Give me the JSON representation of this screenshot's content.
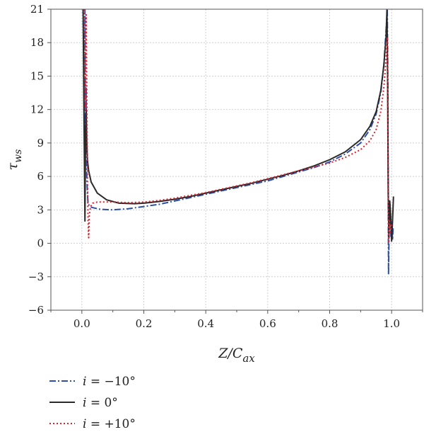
{
  "chart_data": {
    "type": "line",
    "xlabel": "Z/C_ax",
    "ylabel": "τ_ws",
    "xlim": [
      -0.1,
      1.1
    ],
    "ylim": [
      -6,
      21
    ],
    "xticks": [
      0.0,
      0.2,
      0.4,
      0.6,
      0.8,
      1.0
    ],
    "xtick_labels": [
      "0.0",
      "0.2",
      "0.4",
      "0.6",
      "0.8",
      "1.0"
    ],
    "yticks": [
      -6,
      -3,
      0,
      3,
      6,
      9,
      12,
      15,
      18,
      21
    ],
    "ytick_labels": [
      "−6",
      "−3",
      "0",
      "3",
      "6",
      "9",
      "12",
      "15",
      "18",
      "21"
    ],
    "grid": true,
    "legend_position": "bottom-left",
    "series": [
      {
        "name": "i = −10°",
        "color": "#2b4fa8",
        "style": "dashdot",
        "points": [
          [
            0.004,
            21
          ],
          [
            0.006,
            16
          ],
          [
            0.008,
            10
          ],
          [
            0.01,
            21
          ],
          [
            0.012,
            8
          ],
          [
            0.014,
            14
          ],
          [
            0.016,
            6
          ],
          [
            0.018,
            4.5
          ],
          [
            0.02,
            3.6
          ],
          [
            0.025,
            3.3
          ],
          [
            0.035,
            3.2
          ],
          [
            0.06,
            3.05
          ],
          [
            0.1,
            3.0
          ],
          [
            0.15,
            3.1
          ],
          [
            0.2,
            3.3
          ],
          [
            0.25,
            3.5
          ],
          [
            0.3,
            3.8
          ],
          [
            0.35,
            4.1
          ],
          [
            0.4,
            4.4
          ],
          [
            0.45,
            4.7
          ],
          [
            0.5,
            5.0
          ],
          [
            0.55,
            5.3
          ],
          [
            0.6,
            5.6
          ],
          [
            0.65,
            6.0
          ],
          [
            0.7,
            6.4
          ],
          [
            0.75,
            6.8
          ],
          [
            0.8,
            7.3
          ],
          [
            0.85,
            8.0
          ],
          [
            0.9,
            9.0
          ],
          [
            0.93,
            10.2
          ],
          [
            0.95,
            11.6
          ],
          [
            0.965,
            13.5
          ],
          [
            0.975,
            16.0
          ],
          [
            0.983,
            19.5
          ],
          [
            0.986,
            21
          ],
          [
            0.988,
            14
          ],
          [
            0.989,
            5
          ],
          [
            0.99,
            -2.8
          ],
          [
            0.992,
            1.5
          ],
          [
            0.995,
            3.5
          ],
          [
            0.998,
            0.5
          ],
          [
            1.0,
            2.0
          ],
          [
            1.003,
            0.3
          ],
          [
            1.005,
            1.5
          ]
        ]
      },
      {
        "name": "i = 0°",
        "color": "#2a2a2a",
        "style": "solid",
        "points": [
          [
            0.004,
            21
          ],
          [
            0.006,
            14
          ],
          [
            0.008,
            8
          ],
          [
            0.01,
            2.0
          ],
          [
            0.012,
            10
          ],
          [
            0.014,
            12
          ],
          [
            0.016,
            9
          ],
          [
            0.018,
            7.5
          ],
          [
            0.022,
            6.5
          ],
          [
            0.03,
            5.5
          ],
          [
            0.05,
            4.5
          ],
          [
            0.08,
            3.9
          ],
          [
            0.12,
            3.6
          ],
          [
            0.17,
            3.55
          ],
          [
            0.2,
            3.6
          ],
          [
            0.25,
            3.75
          ],
          [
            0.3,
            3.95
          ],
          [
            0.35,
            4.2
          ],
          [
            0.4,
            4.5
          ],
          [
            0.45,
            4.8
          ],
          [
            0.5,
            5.1
          ],
          [
            0.55,
            5.4
          ],
          [
            0.6,
            5.75
          ],
          [
            0.65,
            6.1
          ],
          [
            0.7,
            6.5
          ],
          [
            0.75,
            6.95
          ],
          [
            0.8,
            7.5
          ],
          [
            0.85,
            8.2
          ],
          [
            0.9,
            9.3
          ],
          [
            0.93,
            10.5
          ],
          [
            0.95,
            11.8
          ],
          [
            0.965,
            13.7
          ],
          [
            0.975,
            16.0
          ],
          [
            0.982,
            18.5
          ],
          [
            0.985,
            21
          ],
          [
            0.987,
            15
          ],
          [
            0.989,
            5
          ],
          [
            0.991,
            0.5
          ],
          [
            0.994,
            3.8
          ],
          [
            0.997,
            2.5
          ],
          [
            1.0,
            0.2
          ],
          [
            1.003,
            2.0
          ],
          [
            1.006,
            4.2
          ]
        ]
      },
      {
        "name": "i = +10°",
        "color": "#e0202a",
        "style": "dotted",
        "points": [
          [
            0.008,
            21
          ],
          [
            0.01,
            17
          ],
          [
            0.012,
            12
          ],
          [
            0.014,
            20.5
          ],
          [
            0.016,
            14
          ],
          [
            0.018,
            6
          ],
          [
            0.02,
            2.0
          ],
          [
            0.022,
            0.5
          ],
          [
            0.024,
            2.5
          ],
          [
            0.028,
            3.3
          ],
          [
            0.035,
            3.6
          ],
          [
            0.05,
            3.7
          ],
          [
            0.1,
            3.7
          ],
          [
            0.15,
            3.65
          ],
          [
            0.2,
            3.7
          ],
          [
            0.25,
            3.85
          ],
          [
            0.3,
            4.05
          ],
          [
            0.35,
            4.3
          ],
          [
            0.4,
            4.55
          ],
          [
            0.45,
            4.85
          ],
          [
            0.5,
            5.15
          ],
          [
            0.55,
            5.45
          ],
          [
            0.6,
            5.8
          ],
          [
            0.65,
            6.15
          ],
          [
            0.7,
            6.5
          ],
          [
            0.75,
            6.85
          ],
          [
            0.8,
            7.2
          ],
          [
            0.85,
            7.7
          ],
          [
            0.9,
            8.4
          ],
          [
            0.93,
            9.2
          ],
          [
            0.95,
            10.2
          ],
          [
            0.965,
            11.8
          ],
          [
            0.975,
            14.0
          ],
          [
            0.982,
            16.5
          ],
          [
            0.986,
            18.5
          ],
          [
            0.988,
            12
          ],
          [
            0.989,
            4
          ],
          [
            0.99,
            0.0
          ],
          [
            0.993,
            2.0
          ],
          [
            0.996,
            1.0
          ],
          [
            1.0,
            1.8
          ]
        ]
      }
    ]
  }
}
